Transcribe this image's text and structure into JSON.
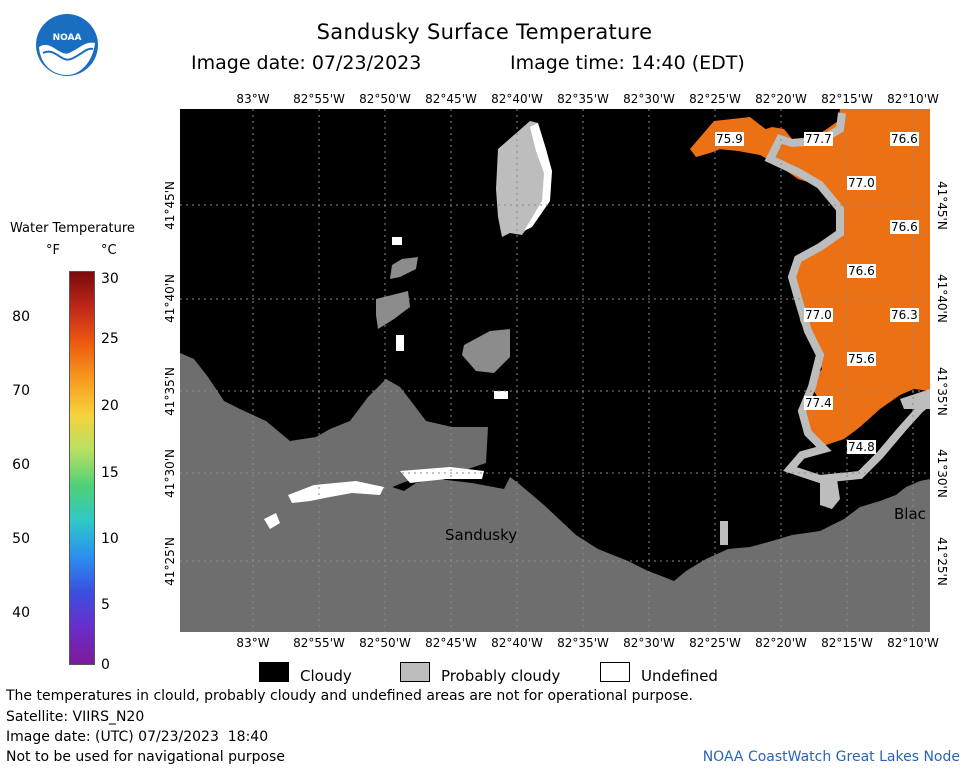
{
  "header": {
    "title": "Sandusky Surface Temperature",
    "image_date": "Image date: 07/23/2023",
    "image_time": "Image time: 14:40 (EDT)"
  },
  "logo": {
    "text": "NOAA"
  },
  "colorbar": {
    "title": "Water Temperature",
    "unit_f": "°F",
    "unit_c": "°C",
    "f_ticks": [
      "80",
      "70",
      "60",
      "50",
      "40"
    ],
    "c_ticks": [
      "30",
      "25",
      "20",
      "15",
      "10",
      "5",
      "0"
    ],
    "colors": [
      "#7a0b0b",
      "#c0281a",
      "#ee5a10",
      "#f79a20",
      "#f7d23c",
      "#b8e063",
      "#4fd177",
      "#2ec8c8",
      "#2b8ef0",
      "#3a4fe0",
      "#6a2dc9",
      "#7d1a9a"
    ]
  },
  "map": {
    "lon_labels": [
      "83°W",
      "82°55'W",
      "82°50'W",
      "82°45'W",
      "82°40'W",
      "82°35'W",
      "82°30'W",
      "82°25'W",
      "82°20'W",
      "82°15'W",
      "82°10'W"
    ],
    "lat_labels": [
      "41°45'N",
      "41°40'N",
      "41°35'N",
      "41°30'N",
      "41°25'N"
    ],
    "place_labels": {
      "city": "Sandusky",
      "edge": "Blac"
    },
    "temperatures": [
      {
        "label": "75.9"
      },
      {
        "label": "77.7"
      },
      {
        "label": "76.6"
      },
      {
        "label": "77.0"
      },
      {
        "label": "76.6"
      },
      {
        "label": "76.6"
      },
      {
        "label": "77.0"
      },
      {
        "label": "76.3"
      },
      {
        "label": "75.6"
      },
      {
        "label": "77.4"
      },
      {
        "label": "74.8"
      }
    ]
  },
  "key": {
    "cloudy": "Cloudy",
    "probably_cloudy": "Probably cloudy",
    "undefined": "Undefined"
  },
  "notes": {
    "disclaimer": "The temperatures in clould, probably cloudy and undefined areas are not for operational purpose.",
    "satellite": "Satellite: VIIRS_N20",
    "utc_date": "Image date: (UTC) 07/23/2023  18:40",
    "navigation": "Not to be used for navigational purpose"
  },
  "credit": "NOAA CoastWatch Great Lakes Node"
}
